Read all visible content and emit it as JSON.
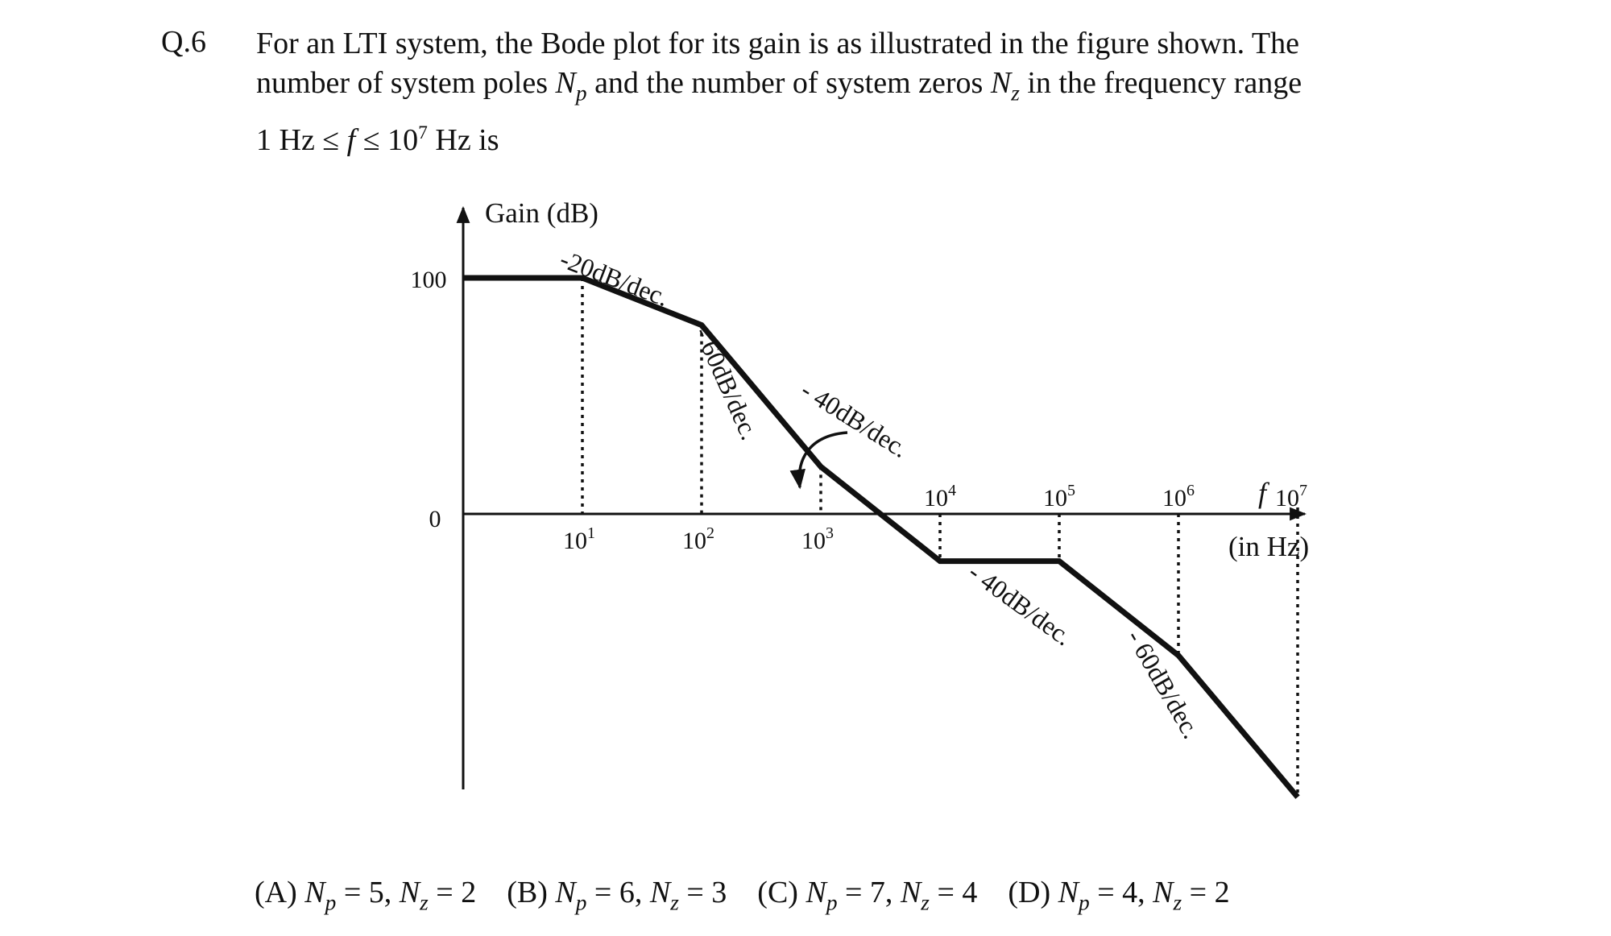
{
  "question": {
    "number": "Q.6",
    "line1": "For an LTI system, the Bode plot for its gain is as illustrated in the figure shown. The",
    "line2_a": "number of system poles ",
    "line2_np_sym": "N",
    "line2_np_sub": "p",
    "line2_b": " and the number of system zeros ",
    "line2_nz_sym": "N",
    "line2_nz_sub": "z",
    "line2_c": " in the frequency range",
    "line3_a": "1 Hz ≤ ",
    "line3_f": "f",
    "line3_b": " ≤ 10",
    "line3_exp": "7",
    "line3_c": " Hz is"
  },
  "chart_data": {
    "type": "line",
    "title": "",
    "ylabel": "Gain (dB)",
    "xlabel": "f",
    "xunit": "(in Hz)",
    "xscale": "log",
    "y_ticks": [
      "100",
      "0"
    ],
    "x_ticks_above": [
      "10^4",
      "10^5",
      "10^6",
      "10^7"
    ],
    "x_ticks_below": [
      "10^1",
      "10^2",
      "10^3"
    ],
    "series": [
      {
        "x": [
          1,
          10,
          100,
          1000,
          10000,
          100000,
          1000000,
          10000000
        ],
        "y": [
          100,
          100,
          80,
          20,
          -20,
          -20,
          -60,
          -120
        ]
      }
    ],
    "slope_labels": [
      "-20dB/dec.",
      "- 60dB/dec.",
      "- 40dB/dec.",
      "- 40dB/dec.",
      "- 60dB/dec."
    ],
    "grid": false
  },
  "options": [
    {
      "label": "(A)",
      "np": "5",
      "nz": "2"
    },
    {
      "label": "(B)",
      "np": "6",
      "nz": "3"
    },
    {
      "label": "(C)",
      "np": "7",
      "nz": "4"
    },
    {
      "label": "(D)",
      "np": "4",
      "nz": "2"
    }
  ]
}
